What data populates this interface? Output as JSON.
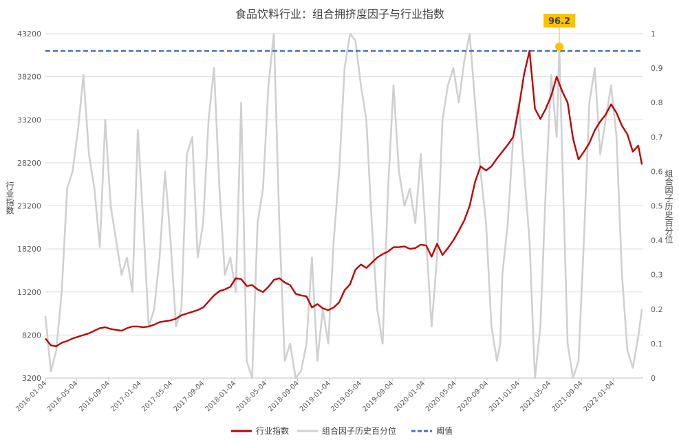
{
  "chart_data": {
    "type": "line",
    "title": "食品饮料行业：组合拥挤度因子与行业指数",
    "ylabel_left": "行业指数",
    "ylabel_right": "组合因子历史百分位",
    "ylim_left": [
      3200,
      43200
    ],
    "ylim_right": [
      0,
      1
    ],
    "yticks_left": [
      "43200",
      "38200",
      "33200",
      "28200",
      "23200",
      "18200",
      "13200",
      "8200",
      "3200"
    ],
    "yticks_right": [
      "1",
      "0.9",
      "0.8",
      "0.7",
      "0.6",
      "0.5",
      "0.4",
      "0.3",
      "0.2",
      "0.1",
      "0"
    ],
    "x_tick_labels": [
      "2016-01-04",
      "2016-05-04",
      "2016-09-04",
      "2017-01-04",
      "2017-05-04",
      "2017-09-04",
      "2018-01-04",
      "2018-05-04",
      "2018-09-04",
      "2019-01-04",
      "2019-05-04",
      "2019-09-04",
      "2020-01-04",
      "2020-05-04",
      "2020-09-04",
      "2021-01-04",
      "2021-05-04",
      "2021-09-04",
      "2022-01-04"
    ],
    "x_range": [
      "2016-01-04",
      "2022-04-30"
    ],
    "grid": true,
    "legend_position": "bottom",
    "annotation": {
      "label": "96.2",
      "date": "2021-06-10",
      "value": 0.962,
      "axis": "right"
    },
    "series": [
      {
        "name": "行业指数",
        "axis": "left",
        "color": "#c00000",
        "points": [
          [
            "2016-01-04",
            7800
          ],
          [
            "2016-01-25",
            7000
          ],
          [
            "2016-02-15",
            6900
          ],
          [
            "2016-03-07",
            7300
          ],
          [
            "2016-03-28",
            7500
          ],
          [
            "2016-04-18",
            7800
          ],
          [
            "2016-05-09",
            8000
          ],
          [
            "2016-05-30",
            8200
          ],
          [
            "2016-06-20",
            8400
          ],
          [
            "2016-07-11",
            8700
          ],
          [
            "2016-08-01",
            9000
          ],
          [
            "2016-08-22",
            9100
          ],
          [
            "2016-09-12",
            8900
          ],
          [
            "2016-10-03",
            8800
          ],
          [
            "2016-10-24",
            8700
          ],
          [
            "2016-11-14",
            9000
          ],
          [
            "2016-12-05",
            9200
          ],
          [
            "2016-12-26",
            9200
          ],
          [
            "2017-01-16",
            9100
          ],
          [
            "2017-02-06",
            9200
          ],
          [
            "2017-02-27",
            9400
          ],
          [
            "2017-03-20",
            9700
          ],
          [
            "2017-04-10",
            9800
          ],
          [
            "2017-05-01",
            9900
          ],
          [
            "2017-05-22",
            10100
          ],
          [
            "2017-06-12",
            10500
          ],
          [
            "2017-07-03",
            10700
          ],
          [
            "2017-07-24",
            10900
          ],
          [
            "2017-08-14",
            11100
          ],
          [
            "2017-09-04",
            11400
          ],
          [
            "2017-09-25",
            12100
          ],
          [
            "2017-10-16",
            12800
          ],
          [
            "2017-11-06",
            13300
          ],
          [
            "2017-11-27",
            13500
          ],
          [
            "2017-12-18",
            13800
          ],
          [
            "2018-01-08",
            14800
          ],
          [
            "2018-01-29",
            14700
          ],
          [
            "2018-02-19",
            13900
          ],
          [
            "2018-03-12",
            14000
          ],
          [
            "2018-04-02",
            13500
          ],
          [
            "2018-04-23",
            13200
          ],
          [
            "2018-05-14",
            13800
          ],
          [
            "2018-06-04",
            14600
          ],
          [
            "2018-06-25",
            14800
          ],
          [
            "2018-07-16",
            14300
          ],
          [
            "2018-08-06",
            14000
          ],
          [
            "2018-08-27",
            13000
          ],
          [
            "2018-09-17",
            12800
          ],
          [
            "2018-10-08",
            12700
          ],
          [
            "2018-10-29",
            11400
          ],
          [
            "2018-11-19",
            11800
          ],
          [
            "2018-12-10",
            11300
          ],
          [
            "2018-12-31",
            11100
          ],
          [
            "2019-01-21",
            11400
          ],
          [
            "2019-02-11",
            12000
          ],
          [
            "2019-03-04",
            13400
          ],
          [
            "2019-03-25",
            14100
          ],
          [
            "2019-04-15",
            15800
          ],
          [
            "2019-05-06",
            16400
          ],
          [
            "2019-05-27",
            16000
          ],
          [
            "2019-06-17",
            16600
          ],
          [
            "2019-07-08",
            17200
          ],
          [
            "2019-07-29",
            17600
          ],
          [
            "2019-08-19",
            17900
          ],
          [
            "2019-09-09",
            18400
          ],
          [
            "2019-09-30",
            18400
          ],
          [
            "2019-10-21",
            18500
          ],
          [
            "2019-11-11",
            18200
          ],
          [
            "2019-12-02",
            18300
          ],
          [
            "2019-12-23",
            18700
          ],
          [
            "2020-01-13",
            18600
          ],
          [
            "2020-02-03",
            17300
          ],
          [
            "2020-02-24",
            18800
          ],
          [
            "2020-03-16",
            17500
          ],
          [
            "2020-04-06",
            18300
          ],
          [
            "2020-04-27",
            19200
          ],
          [
            "2020-05-18",
            20300
          ],
          [
            "2020-06-08",
            21500
          ],
          [
            "2020-06-29",
            23200
          ],
          [
            "2020-07-20",
            26000
          ],
          [
            "2020-08-10",
            27800
          ],
          [
            "2020-08-31",
            27300
          ],
          [
            "2020-09-21",
            27800
          ],
          [
            "2020-10-12",
            28700
          ],
          [
            "2020-11-02",
            29500
          ],
          [
            "2020-11-23",
            30300
          ],
          [
            "2020-12-14",
            31200
          ],
          [
            "2021-01-04",
            34500
          ],
          [
            "2021-01-25",
            38500
          ],
          [
            "2021-02-15",
            41200
          ],
          [
            "2021-03-08",
            34500
          ],
          [
            "2021-03-29",
            33300
          ],
          [
            "2021-04-19",
            34500
          ],
          [
            "2021-05-10",
            36000
          ],
          [
            "2021-05-31",
            38200
          ],
          [
            "2021-06-21",
            36500
          ],
          [
            "2021-07-12",
            35200
          ],
          [
            "2021-08-02",
            31000
          ],
          [
            "2021-08-23",
            28600
          ],
          [
            "2021-09-13",
            29500
          ],
          [
            "2021-10-04",
            30500
          ],
          [
            "2021-10-25",
            32000
          ],
          [
            "2021-11-15",
            33000
          ],
          [
            "2021-12-06",
            33800
          ],
          [
            "2021-12-27",
            35000
          ],
          [
            "2022-01-17",
            34000
          ],
          [
            "2022-02-07",
            32500
          ],
          [
            "2022-02-28",
            31500
          ],
          [
            "2022-03-21",
            29500
          ],
          [
            "2022-04-11",
            30200
          ],
          [
            "2022-04-25",
            28000
          ]
        ]
      },
      {
        "name": "组合因子历史百分位",
        "axis": "right",
        "color": "#d0d0d0",
        "points": [
          [
            "2016-01-04",
            0.18
          ],
          [
            "2016-01-25",
            0.02
          ],
          [
            "2016-02-15",
            0.08
          ],
          [
            "2016-03-07",
            0.25
          ],
          [
            "2016-03-28",
            0.55
          ],
          [
            "2016-04-18",
            0.6
          ],
          [
            "2016-05-09",
            0.72
          ],
          [
            "2016-05-30",
            0.88
          ],
          [
            "2016-06-20",
            0.65
          ],
          [
            "2016-07-11",
            0.55
          ],
          [
            "2016-08-01",
            0.38
          ],
          [
            "2016-08-22",
            0.75
          ],
          [
            "2016-09-12",
            0.5
          ],
          [
            "2016-10-03",
            0.4
          ],
          [
            "2016-10-24",
            0.3
          ],
          [
            "2016-11-14",
            0.35
          ],
          [
            "2016-12-05",
            0.25
          ],
          [
            "2016-12-26",
            0.72
          ],
          [
            "2017-01-16",
            0.45
          ],
          [
            "2017-02-06",
            0.15
          ],
          [
            "2017-02-27",
            0.2
          ],
          [
            "2017-03-20",
            0.35
          ],
          [
            "2017-04-10",
            0.6
          ],
          [
            "2017-05-01",
            0.4
          ],
          [
            "2017-05-22",
            0.15
          ],
          [
            "2017-06-12",
            0.2
          ],
          [
            "2017-07-03",
            0.65
          ],
          [
            "2017-07-24",
            0.7
          ],
          [
            "2017-08-14",
            0.35
          ],
          [
            "2017-09-04",
            0.45
          ],
          [
            "2017-09-25",
            0.75
          ],
          [
            "2017-10-16",
            0.9
          ],
          [
            "2017-11-06",
            0.55
          ],
          [
            "2017-11-27",
            0.3
          ],
          [
            "2017-12-18",
            0.35
          ],
          [
            "2018-01-08",
            0.25
          ],
          [
            "2018-01-29",
            0.8
          ],
          [
            "2018-02-19",
            0.05
          ],
          [
            "2018-03-12",
            0.0
          ],
          [
            "2018-04-02",
            0.45
          ],
          [
            "2018-04-23",
            0.55
          ],
          [
            "2018-05-14",
            0.85
          ],
          [
            "2018-06-04",
            1.0
          ],
          [
            "2018-06-25",
            0.45
          ],
          [
            "2018-07-16",
            0.05
          ],
          [
            "2018-08-06",
            0.1
          ],
          [
            "2018-08-27",
            0.0
          ],
          [
            "2018-09-17",
            0.02
          ],
          [
            "2018-10-08",
            0.1
          ],
          [
            "2018-10-29",
            0.35
          ],
          [
            "2018-11-19",
            0.05
          ],
          [
            "2018-12-10",
            0.2
          ],
          [
            "2018-12-31",
            0.1
          ],
          [
            "2019-01-21",
            0.4
          ],
          [
            "2019-02-11",
            0.6
          ],
          [
            "2019-03-04",
            0.9
          ],
          [
            "2019-03-25",
            1.0
          ],
          [
            "2019-04-15",
            0.98
          ],
          [
            "2019-05-06",
            0.85
          ],
          [
            "2019-05-27",
            0.75
          ],
          [
            "2019-06-17",
            0.45
          ],
          [
            "2019-07-08",
            0.2
          ],
          [
            "2019-07-29",
            0.1
          ],
          [
            "2019-08-19",
            0.55
          ],
          [
            "2019-09-09",
            0.85
          ],
          [
            "2019-09-30",
            0.6
          ],
          [
            "2019-10-21",
            0.5
          ],
          [
            "2019-11-11",
            0.55
          ],
          [
            "2019-12-02",
            0.45
          ],
          [
            "2019-12-23",
            0.65
          ],
          [
            "2020-01-13",
            0.4
          ],
          [
            "2020-02-03",
            0.15
          ],
          [
            "2020-02-24",
            0.35
          ],
          [
            "2020-03-16",
            0.75
          ],
          [
            "2020-04-06",
            0.85
          ],
          [
            "2020-04-27",
            0.9
          ],
          [
            "2020-05-18",
            0.8
          ],
          [
            "2020-06-08",
            0.92
          ],
          [
            "2020-06-29",
            1.0
          ],
          [
            "2020-07-20",
            0.8
          ],
          [
            "2020-08-10",
            0.6
          ],
          [
            "2020-08-31",
            0.45
          ],
          [
            "2020-09-21",
            0.15
          ],
          [
            "2020-10-12",
            0.05
          ],
          [
            "2020-10-25",
            0.1
          ],
          [
            "2020-11-02",
            0.3
          ],
          [
            "2020-11-23",
            0.45
          ],
          [
            "2020-12-14",
            0.7
          ],
          [
            "2021-01-04",
            0.8
          ],
          [
            "2021-01-25",
            0.6
          ],
          [
            "2021-02-15",
            0.4
          ],
          [
            "2021-03-08",
            0.0
          ],
          [
            "2021-03-29",
            0.15
          ],
          [
            "2021-04-19",
            0.55
          ],
          [
            "2021-05-10",
            0.88
          ],
          [
            "2021-05-31",
            0.7
          ],
          [
            "2021-06-10",
            0.962
          ],
          [
            "2021-06-21",
            0.65
          ],
          [
            "2021-07-12",
            0.1
          ],
          [
            "2021-08-02",
            0.0
          ],
          [
            "2021-08-23",
            0.05
          ],
          [
            "2021-09-13",
            0.4
          ],
          [
            "2021-10-04",
            0.8
          ],
          [
            "2021-10-25",
            0.9
          ],
          [
            "2021-11-15",
            0.65
          ],
          [
            "2021-12-06",
            0.75
          ],
          [
            "2021-12-27",
            0.85
          ],
          [
            "2022-01-17",
            0.7
          ],
          [
            "2022-02-07",
            0.3
          ],
          [
            "2022-02-28",
            0.08
          ],
          [
            "2022-03-21",
            0.03
          ],
          [
            "2022-04-11",
            0.12
          ],
          [
            "2022-04-25",
            0.2
          ]
        ]
      },
      {
        "name": "阈值",
        "axis": "right",
        "color": "#4472c4",
        "dashed": true,
        "points": [
          [
            "2016-01-04",
            0.95
          ],
          [
            "2022-04-30",
            0.95
          ]
        ]
      }
    ]
  }
}
